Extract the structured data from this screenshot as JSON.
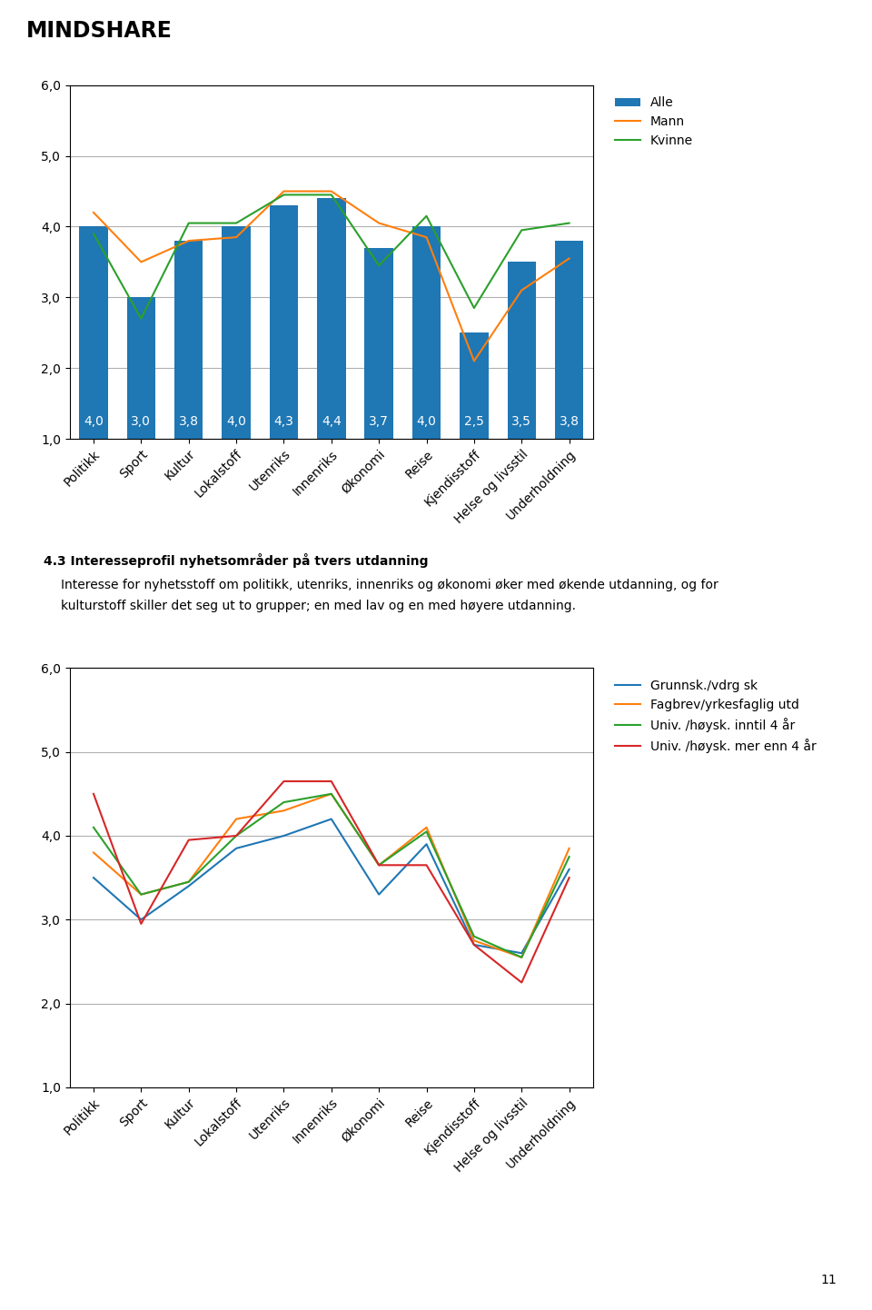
{
  "annotations": [
    "MINDSHARE",
    "11"
  ],
  "chart_data": [
    {
      "type": "bar",
      "categories": [
        "Politikk",
        "Sport",
        "Kultur",
        "Lokalstoff",
        "Utenriks",
        "Innenriks",
        "Økonomi",
        "Reise",
        "Kjendisstoff",
        "Helse og livsstil",
        "Underholdning"
      ],
      "series": [
        {
          "name": "Alle",
          "type": "bar",
          "values": [
            4.0,
            3.0,
            3.8,
            4.0,
            4.3,
            4.4,
            3.7,
            4.0,
            2.5,
            3.5,
            3.8
          ],
          "value_labels": [
            "4,0",
            "3,0",
            "3,8",
            "4,0",
            "4,3",
            "4,4",
            "3,7",
            "4,0",
            "2,5",
            "3,5",
            "3,8"
          ]
        },
        {
          "name": "Mann",
          "type": "line",
          "values": [
            4.2,
            3.5,
            3.8,
            3.85,
            4.5,
            4.5,
            4.05,
            3.85,
            2.1,
            3.1,
            3.55
          ]
        },
        {
          "name": "Kvinne",
          "type": "line",
          "values": [
            3.9,
            2.7,
            4.05,
            4.05,
            4.45,
            4.45,
            3.45,
            4.15,
            2.85,
            3.95,
            4.05
          ]
        }
      ],
      "ylim": [
        1.0,
        6.0
      ],
      "yticks": [
        {
          "value": 1.0,
          "label": "1,0"
        },
        {
          "value": 2.0,
          "label": "2,0"
        },
        {
          "value": 3.0,
          "label": "3,0"
        },
        {
          "value": 4.0,
          "label": "4,0"
        },
        {
          "value": 5.0,
          "label": "5,0"
        },
        {
          "value": 6.0,
          "label": "6,0"
        }
      ],
      "grid": "y",
      "legend": "upper left",
      "data_labels": true
    },
    {
      "type": "line",
      "title": "4.3 Interesseprofil nyhetsområder på tvers utdanning",
      "subtitle": [
        "Interesse for nyhetsstoff om politikk, utenriks, innenriks og økonomi øker med økende utdanning, og for",
        "kulturstoff skiller det seg ut to grupper; en med lav og en med høyere utdanning."
      ],
      "categories": [
        "Politikk",
        "Sport",
        "Kultur",
        "Lokalstoff",
        "Utenriks",
        "Innenriks",
        "Økonomi",
        "Reise",
        "Kjendisstoff",
        "Helse og livsstil",
        "Underholdning"
      ],
      "series": [
        {
          "name": "Grunnsk./vdrg sk",
          "values": [
            3.5,
            3.0,
            3.4,
            3.85,
            4.0,
            4.2,
            3.3,
            3.9,
            2.7,
            2.6,
            3.6
          ]
        },
        {
          "name": "Fagbrev/yrkesfaglig utd",
          "values": [
            3.8,
            3.3,
            3.45,
            4.2,
            4.3,
            4.5,
            3.65,
            4.1,
            2.75,
            2.55,
            3.85
          ]
        },
        {
          "name": "Univ. /høysk. inntil 4 år",
          "values": [
            4.1,
            3.3,
            3.45,
            4.0,
            4.4,
            4.5,
            3.65,
            4.05,
            2.8,
            2.55,
            3.75
          ]
        },
        {
          "name": "Univ. /høysk. mer enn 4 år",
          "values": [
            4.5,
            2.95,
            3.95,
            4.0,
            4.65,
            4.65,
            3.65,
            3.65,
            2.7,
            2.25,
            3.5
          ]
        }
      ],
      "ylim": [
        1.0,
        6.0
      ],
      "yticks": [
        {
          "value": 1.0,
          "label": "1,0"
        },
        {
          "value": 2.0,
          "label": "2,0"
        },
        {
          "value": 3.0,
          "label": "3,0"
        },
        {
          "value": 4.0,
          "label": "4,0"
        },
        {
          "value": 5.0,
          "label": "5,0"
        },
        {
          "value": 6.0,
          "label": "6,0"
        }
      ],
      "grid": "y",
      "legend": "upper left"
    }
  ]
}
